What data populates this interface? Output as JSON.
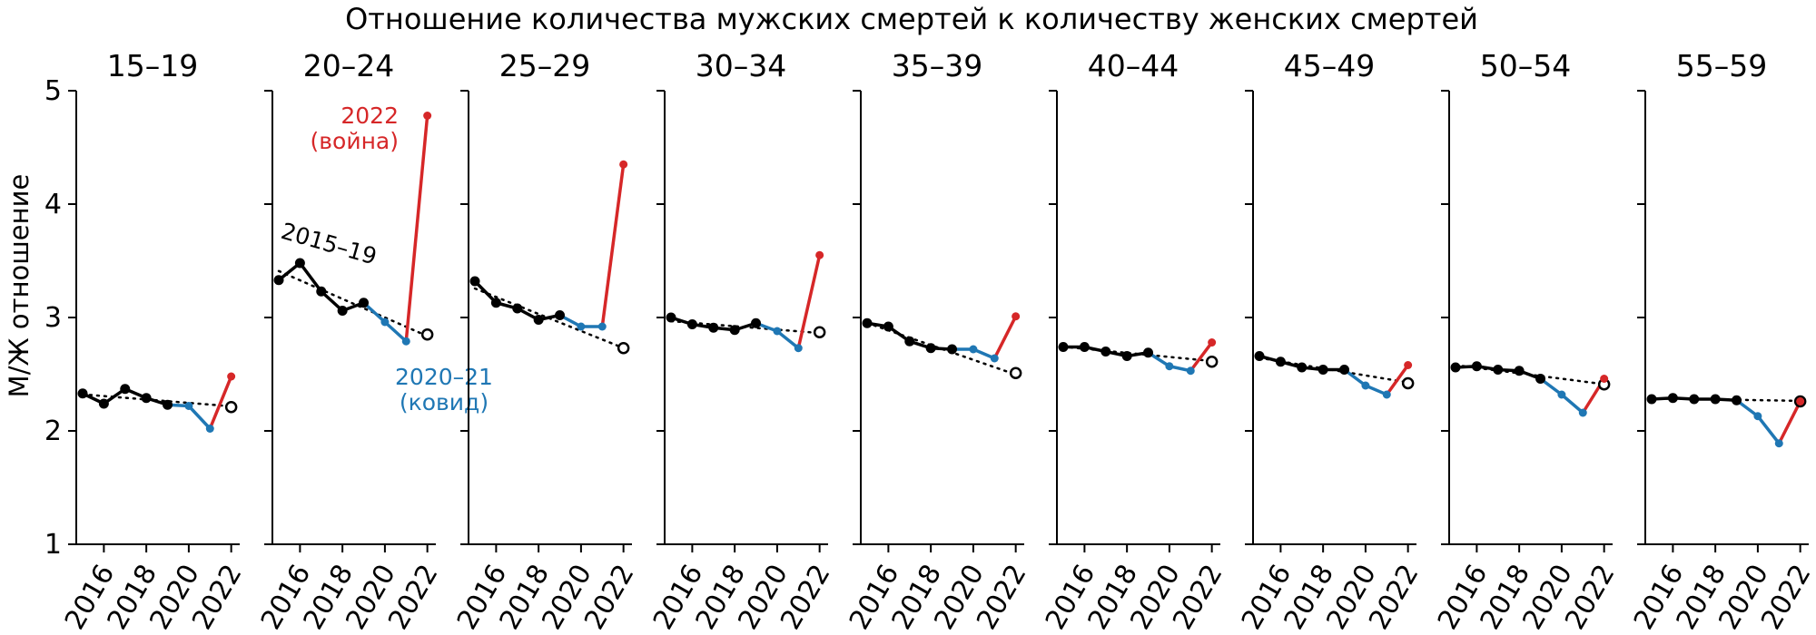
{
  "chart_data": {
    "type": "line",
    "title": "Отношение количества мужских смертей к количеству женских смертей",
    "ylabel": "М/Ж отношение",
    "xlabel": "",
    "ylim": [
      1,
      5
    ],
    "xlim": [
      2014.7,
      2022.4
    ],
    "yticks": [
      1,
      2,
      3,
      4,
      5
    ],
    "xticks": [
      2016,
      2018,
      2020,
      2022
    ],
    "x": [
      2015,
      2016,
      2017,
      2018,
      2019,
      2020,
      2021,
      2022
    ],
    "grid": false,
    "colors": {
      "baseline": "#000000",
      "covid": "#1f77b4",
      "war": "#d62728",
      "trend": "#000000"
    },
    "annotations": {
      "war": "2022\n(война)",
      "covid": "2020–21\n(ковид)",
      "baseline": "2015–19"
    },
    "panels": [
      {
        "title": "15–19",
        "values": [
          2.33,
          2.24,
          2.37,
          2.29,
          2.23,
          2.22,
          2.02,
          2.48
        ],
        "expected_2022": 2.21
      },
      {
        "title": "20–24",
        "values": [
          3.33,
          3.48,
          3.23,
          3.06,
          3.13,
          2.96,
          2.79,
          4.78
        ],
        "expected_2022": 2.85
      },
      {
        "title": "25–29",
        "values": [
          3.32,
          3.13,
          3.08,
          2.98,
          3.02,
          2.92,
          2.92,
          4.35
        ],
        "expected_2022": 2.73
      },
      {
        "title": "30–34",
        "values": [
          3.0,
          2.94,
          2.91,
          2.89,
          2.95,
          2.88,
          2.73,
          3.55
        ],
        "expected_2022": 2.87
      },
      {
        "title": "35–39",
        "values": [
          2.95,
          2.92,
          2.79,
          2.73,
          2.72,
          2.72,
          2.64,
          3.01
        ],
        "expected_2022": 2.51
      },
      {
        "title": "40–44",
        "values": [
          2.74,
          2.74,
          2.7,
          2.66,
          2.69,
          2.57,
          2.53,
          2.78
        ],
        "expected_2022": 2.61
      },
      {
        "title": "45–49",
        "values": [
          2.66,
          2.61,
          2.56,
          2.54,
          2.54,
          2.4,
          2.32,
          2.58
        ],
        "expected_2022": 2.42
      },
      {
        "title": "50–54",
        "values": [
          2.56,
          2.57,
          2.54,
          2.53,
          2.46,
          2.32,
          2.16,
          2.46
        ],
        "expected_2022": 2.41
      },
      {
        "title": "55–59",
        "values": [
          2.28,
          2.29,
          2.28,
          2.28,
          2.27,
          2.13,
          1.89,
          2.26
        ],
        "expected_2022": 2.26
      }
    ]
  }
}
